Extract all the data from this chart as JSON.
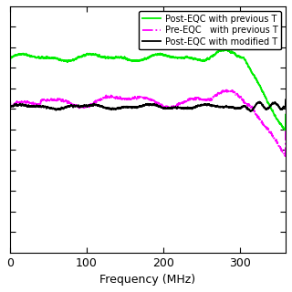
{
  "xlabel": "Frequency (MHz)",
  "xlim": [
    0,
    360
  ],
  "ylim": [
    -8,
    4
  ],
  "yticks": [
    -7,
    -6,
    -5,
    -4,
    -3,
    -2,
    -1,
    0,
    1,
    2,
    3
  ],
  "xticks": [
    0,
    100,
    200,
    300
  ],
  "legend": [
    {
      "label": "Post-EQC with previous T",
      "color": "#00ee00",
      "linestyle": "solid",
      "linewidth": 1.3
    },
    {
      "label": "Pre-EQC   with previous T",
      "color": "#ff00ff",
      "linestyle": "dashdot",
      "linewidth": 1.3
    },
    {
      "label": "Post-EQC with modified T",
      "color": "#000000",
      "linestyle": "solid",
      "linewidth": 1.3
    }
  ],
  "background_color": "#ffffff",
  "freq_max": 360,
  "num_points": 3600
}
